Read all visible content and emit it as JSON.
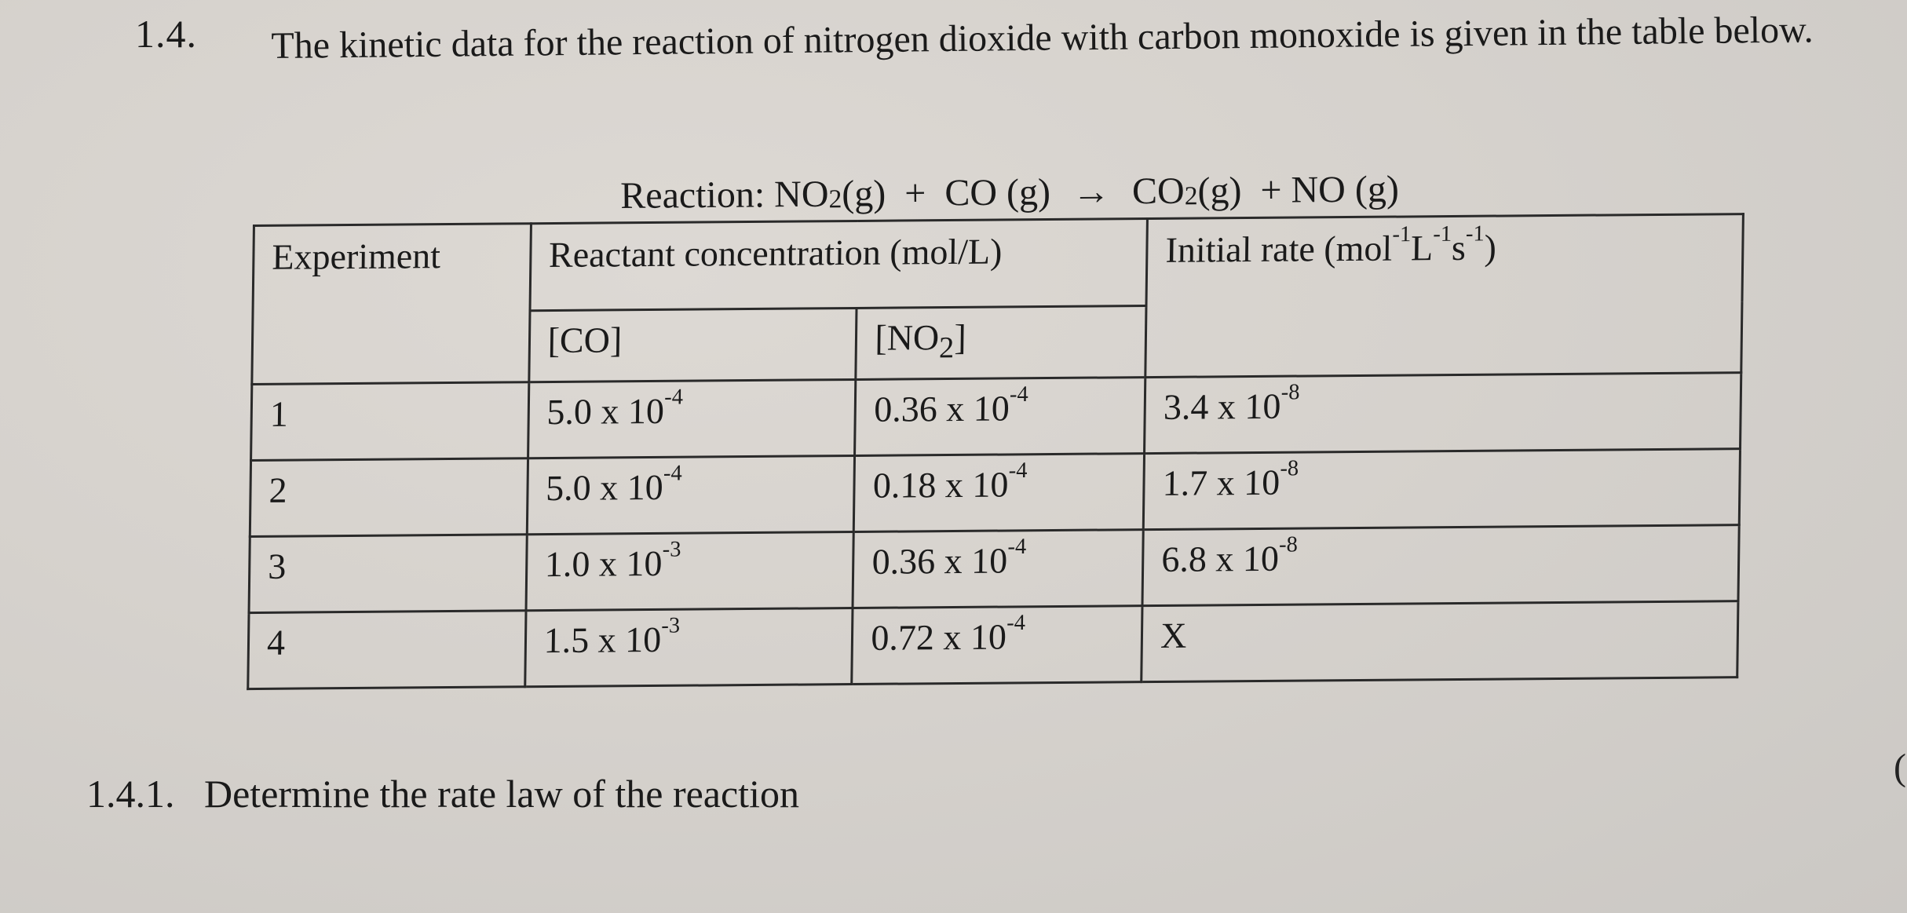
{
  "question": {
    "number": "1.4.",
    "text": "The kinetic data for the reaction of nitrogen dioxide with carbon monoxide is given in the table below."
  },
  "reaction": {
    "prefix": "Reaction: ",
    "reactant1": "NO",
    "reactant1_sub": "2",
    "reactant1_state": "(g)",
    "plus1": "+",
    "reactant2": "CO (g)",
    "arrow": "→",
    "product1": "CO",
    "product1_sub": "2",
    "product1_state": "(g)",
    "plus2": "+",
    "product2": "NO (g)"
  },
  "table": {
    "header": {
      "experiment": "Experiment",
      "concentration": "Reactant concentration (mol/L)",
      "rate_label": "Initial rate (mol",
      "rate_exp1": "-1",
      "rate_L": "L",
      "rate_exp2": "-1",
      "rate_s": "s",
      "rate_exp3": "-1",
      "rate_close": ")",
      "co": "[CO]",
      "no2_open": "[NO",
      "no2_sub": "2",
      "no2_close": "]"
    },
    "rows": [
      {
        "exp": "1",
        "co_base": "5.0 x 10",
        "co_exp": "-4",
        "no2_base": "0.36 x 10",
        "no2_exp": "-4",
        "rate_base": "3.4 x 10",
        "rate_exp": "-8"
      },
      {
        "exp": "2",
        "co_base": "5.0 x 10",
        "co_exp": "-4",
        "no2_base": "0.18 x 10",
        "no2_exp": "-4",
        "rate_base": "1.7 x 10",
        "rate_exp": "-8"
      },
      {
        "exp": "3",
        "co_base": "1.0 x 10",
        "co_exp": "-3",
        "no2_base": "0.36 x 10",
        "no2_exp": "-4",
        "rate_base": "6.8 x 10",
        "rate_exp": "-8"
      },
      {
        "exp": "4",
        "co_base": "1.5 x 10",
        "co_exp": "-3",
        "no2_base": "0.72 x 10",
        "no2_exp": "-4",
        "rate_base": "X",
        "rate_exp": ""
      }
    ]
  },
  "sub_question": {
    "number": "1.4.1.",
    "text": "Determine the rate law of the reaction"
  },
  "edge_mark": "("
}
